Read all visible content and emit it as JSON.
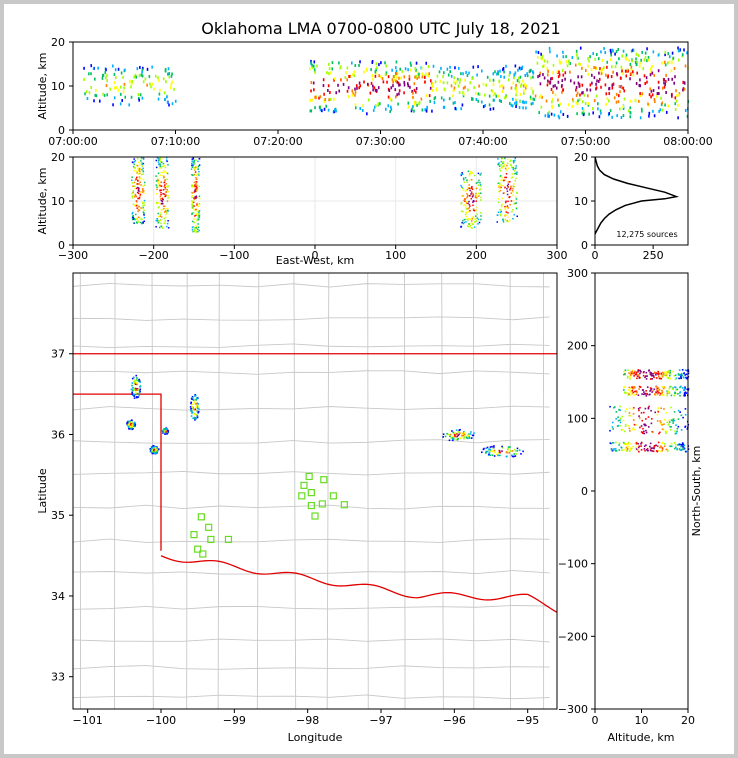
{
  "title": "Oklahoma LMA 0700-0800 UTC July 18, 2021",
  "colors": {
    "background": "#ffffff",
    "border": "#c8c8c8",
    "state_border": "#e00000",
    "county_lines": "#c8c8c8",
    "station": "#66dd22",
    "density": [
      "#0000ff",
      "#00b0ff",
      "#00c060",
      "#a0ff00",
      "#ffff00",
      "#ff8000",
      "#ff0000",
      "#800080"
    ]
  },
  "chart_data": [
    {
      "type": "scatter",
      "name": "time-altitude",
      "xlabel": "",
      "ylabel": "Altitude, km",
      "xlim_minutes": [
        0,
        60
      ],
      "ylim": [
        0,
        20
      ],
      "x_ticks": [
        "07:00:00",
        "07:10:00",
        "07:20:00",
        "07:30:00",
        "07:40:00",
        "07:50:00",
        "08:00:00"
      ],
      "y_ticks": [
        "0",
        "10",
        "20"
      ],
      "clusters": [
        {
          "t0": 1,
          "t1": 10,
          "z0": 6,
          "z1": 15,
          "n": 120
        },
        {
          "t0": 23,
          "t1": 35,
          "z0": 4,
          "z1": 16,
          "n": 260
        },
        {
          "t0": 35,
          "t1": 45,
          "z0": 5,
          "z1": 15,
          "n": 200
        },
        {
          "t0": 45,
          "t1": 60,
          "z0": 3,
          "z1": 19,
          "n": 420
        }
      ]
    },
    {
      "type": "scatter",
      "name": "east-west-altitude",
      "xlabel": "East-West, km",
      "ylabel": "Altitude, km",
      "xlim": [
        -300,
        300
      ],
      "ylim": [
        0,
        20
      ],
      "x_ticks": [
        "−300",
        "−200",
        "−100",
        "0",
        "100",
        "200",
        "300"
      ],
      "y_ticks": [
        "0",
        "10",
        "20"
      ],
      "clusters": [
        {
          "x0": -228,
          "x1": -212,
          "z0": 5,
          "z1": 20
        },
        {
          "x0": -198,
          "x1": -182,
          "z0": 4,
          "z1": 20
        },
        {
          "x0": -154,
          "x1": -144,
          "z0": 3,
          "z1": 20
        },
        {
          "x0": 180,
          "x1": 205,
          "z0": 4,
          "z1": 17
        },
        {
          "x0": 225,
          "x1": 250,
          "z0": 5,
          "z1": 20
        }
      ]
    },
    {
      "type": "line",
      "name": "altitude-histogram",
      "xlim": [
        0,
        400
      ],
      "ylim": [
        0,
        20
      ],
      "x_ticks": [
        "0",
        "250"
      ],
      "y_ticks": [
        "0",
        "10",
        "20"
      ],
      "annotation": "12,275 sources",
      "profile": [
        [
          0,
          20
        ],
        [
          5,
          19
        ],
        [
          10,
          18
        ],
        [
          20,
          17
        ],
        [
          40,
          16
        ],
        [
          80,
          15
        ],
        [
          140,
          14
        ],
        [
          220,
          13
        ],
        [
          300,
          12
        ],
        [
          350,
          11
        ],
        [
          300,
          10.5
        ],
        [
          200,
          10
        ],
        [
          130,
          9
        ],
        [
          90,
          8
        ],
        [
          60,
          7
        ],
        [
          40,
          6
        ],
        [
          25,
          5
        ],
        [
          15,
          4
        ],
        [
          5,
          3
        ],
        [
          0,
          2.5
        ]
      ]
    },
    {
      "type": "scatter",
      "name": "plan-view",
      "xlabel": "Longitude",
      "ylabel": "Latitude",
      "xlim": [
        -101.2,
        -94.6
      ],
      "ylim": [
        32.6,
        38.0
      ],
      "x_ticks": [
        "−101",
        "−100",
        "−99",
        "−98",
        "−97",
        "−96",
        "−95"
      ],
      "y_ticks": [
        "33",
        "34",
        "35",
        "36",
        "37"
      ],
      "clusters": [
        {
          "lon": -100.35,
          "lat": 36.6,
          "w": 0.14,
          "h": 0.3
        },
        {
          "lon": -100.42,
          "lat": 36.13,
          "w": 0.12,
          "h": 0.12
        },
        {
          "lon": -100.1,
          "lat": 35.82,
          "w": 0.12,
          "h": 0.1
        },
        {
          "lon": -99.95,
          "lat": 36.05,
          "w": 0.08,
          "h": 0.08
        },
        {
          "lon": -99.55,
          "lat": 36.35,
          "w": 0.12,
          "h": 0.35
        },
        {
          "lon": -95.95,
          "lat": 36.0,
          "w": 0.45,
          "h": 0.15
        },
        {
          "lon": -95.35,
          "lat": 35.8,
          "w": 0.6,
          "h": 0.15
        }
      ],
      "stations": [
        [
          -97.98,
          35.48
        ],
        [
          -97.78,
          35.44
        ],
        [
          -98.05,
          35.37
        ],
        [
          -97.95,
          35.28
        ],
        [
          -98.08,
          35.24
        ],
        [
          -97.65,
          35.24
        ],
        [
          -97.8,
          35.14
        ],
        [
          -97.95,
          35.12
        ],
        [
          -97.5,
          35.13
        ],
        [
          -97.9,
          34.99
        ],
        [
          -99.45,
          34.98
        ],
        [
          -99.35,
          34.85
        ],
        [
          -99.55,
          34.76
        ],
        [
          -99.32,
          34.7
        ],
        [
          -99.08,
          34.7
        ],
        [
          -99.5,
          34.58
        ],
        [
          -99.43,
          34.52
        ]
      ]
    },
    {
      "type": "scatter",
      "name": "altitude-north-south",
      "xlabel": "Altitude, km",
      "ylabel": "North-South, km",
      "xlim": [
        0,
        20
      ],
      "ylim": [
        -300,
        300
      ],
      "x_ticks": [
        "0",
        "10",
        "20"
      ],
      "y_ticks": [
        "−300",
        "−200",
        "−100",
        "0",
        "100",
        "200",
        "300"
      ],
      "clusters": [
        {
          "z0": 6,
          "z1": 20,
          "y0": 155,
          "y1": 168
        },
        {
          "z0": 6,
          "z1": 20,
          "y0": 132,
          "y1": 145
        },
        {
          "z0": 3,
          "z1": 20,
          "y0": 80,
          "y1": 118
        },
        {
          "z0": 3,
          "z1": 20,
          "y0": 55,
          "y1": 68
        }
      ]
    }
  ]
}
